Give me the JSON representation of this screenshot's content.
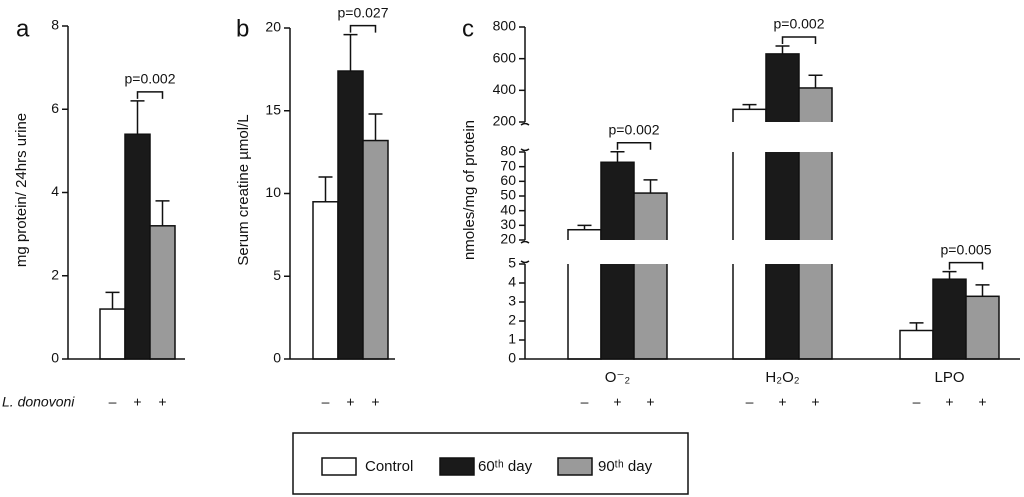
{
  "chart_data": [
    {
      "type": "bar",
      "panel_label": "a",
      "y_label": "mg protein/ 24hrs urine",
      "row_label": "L. donovoni",
      "signs": [
        "–",
        "+",
        "+"
      ],
      "categories": [
        null
      ],
      "p_values": [
        "p=0.002"
      ],
      "y_segments": [
        {
          "ylim": [
            0,
            8
          ],
          "yticks": [
            0,
            2,
            4,
            6,
            8
          ]
        }
      ],
      "series": [
        {
          "color": "#ffffff",
          "values": [
            1.2
          ],
          "errors": [
            0.4
          ]
        },
        {
          "color": "#1a1a1a",
          "values": [
            5.4
          ],
          "errors": [
            0.8
          ]
        },
        {
          "color": "#9a9a9a",
          "values": [
            3.2
          ],
          "errors": [
            0.6
          ]
        }
      ]
    },
    {
      "type": "bar",
      "panel_label": "b",
      "y_label": "Serum creatine µmol/L",
      "signs": [
        "–",
        "+",
        "+"
      ],
      "categories": [
        null
      ],
      "p_values": [
        "p=0.027"
      ],
      "y_segments": [
        {
          "ylim": [
            0,
            20
          ],
          "yticks": [
            0,
            5,
            10,
            15,
            20
          ]
        }
      ],
      "series": [
        {
          "color": "#ffffff",
          "values": [
            9.5
          ],
          "errors": [
            1.5
          ]
        },
        {
          "color": "#1a1a1a",
          "values": [
            17.4
          ],
          "errors": [
            2.2
          ]
        },
        {
          "color": "#9a9a9a",
          "values": [
            13.2
          ],
          "errors": [
            1.6
          ]
        }
      ]
    },
    {
      "type": "bar",
      "panel_label": "c",
      "y_label": "nmoles/mg of protein",
      "signs": [
        "–",
        "+",
        "+"
      ],
      "categories": [
        "O⁻₂",
        "H₂O₂",
        "LPO"
      ],
      "p_values": [
        "p=0.002",
        "p=0.002",
        "p=0.005"
      ],
      "y_segments": [
        {
          "ylim": [
            0,
            5
          ],
          "yticks": [
            0,
            1,
            2,
            3,
            4,
            5
          ]
        },
        {
          "ylim": [
            20,
            80
          ],
          "yticks": [
            20,
            30,
            40,
            50,
            60,
            70,
            80
          ]
        },
        {
          "ylim": [
            200,
            800
          ],
          "yticks": [
            200,
            400,
            600,
            800
          ]
        }
      ],
      "series": [
        {
          "name": "Control",
          "color": "#ffffff",
          "values": [
            27,
            280,
            1.5
          ],
          "errors": [
            3,
            30,
            0.4
          ]
        },
        {
          "name": "60ᵗʰ day",
          "color": "#1a1a1a",
          "values": [
            73,
            630,
            4.2
          ],
          "errors": [
            8,
            50,
            0.4
          ]
        },
        {
          "name": "90ᵗʰ day",
          "color": "#9a9a9a",
          "values": [
            52,
            415,
            3.3
          ],
          "errors": [
            9,
            80,
            0.6
          ]
        }
      ]
    }
  ]
}
